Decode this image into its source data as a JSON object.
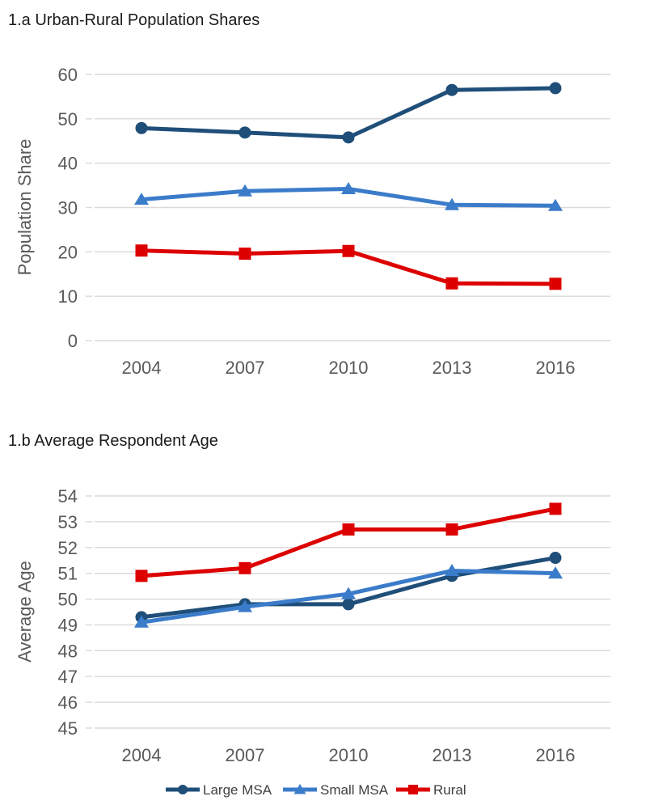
{
  "page": {
    "background": "#ffffff"
  },
  "colors": {
    "large_msa": "#1F4E79",
    "small_msa": "#3B7CCA",
    "rural": "#DD0000",
    "grid": "#D9D9D9",
    "tick_text": "#595959",
    "title_text": "#1A1A1A",
    "legend_text": "#404040"
  },
  "chart_data": [
    {
      "type": "line",
      "title": "1.a Urban-Rural Population Shares",
      "xlabel": "",
      "ylabel": "Population Share",
      "categories": [
        "2004",
        "2007",
        "2010",
        "2013",
        "2016"
      ],
      "ylim": [
        0,
        60
      ],
      "ytick_step": 10,
      "grid": true,
      "legend_position": "shared-bottom",
      "series": [
        {
          "name": "Large MSA",
          "marker": "circle",
          "color_key": "large_msa",
          "values": [
            47.9,
            46.9,
            45.8,
            56.5,
            56.9
          ]
        },
        {
          "name": "Small MSA",
          "marker": "triangle",
          "color_key": "small_msa",
          "values": [
            31.8,
            33.7,
            34.2,
            30.6,
            30.4
          ]
        },
        {
          "name": "Rural",
          "marker": "square",
          "color_key": "rural",
          "values": [
            20.3,
            19.6,
            20.2,
            12.9,
            12.8
          ]
        }
      ]
    },
    {
      "type": "line",
      "title": "1.b Average Respondent Age",
      "xlabel": "",
      "ylabel": "Average Age",
      "categories": [
        "2004",
        "2007",
        "2010",
        "2013",
        "2016"
      ],
      "ylim": [
        45,
        54
      ],
      "ytick_step": 1,
      "grid": true,
      "legend_position": "shared-bottom",
      "series": [
        {
          "name": "Large MSA",
          "marker": "circle",
          "color_key": "large_msa",
          "values": [
            49.3,
            49.8,
            49.8,
            50.9,
            51.6
          ]
        },
        {
          "name": "Small MSA",
          "marker": "triangle",
          "color_key": "small_msa",
          "values": [
            49.1,
            49.7,
            50.2,
            51.1,
            51.0
          ]
        },
        {
          "name": "Rural",
          "marker": "square",
          "color_key": "rural",
          "values": [
            50.9,
            51.2,
            52.7,
            52.7,
            53.5
          ]
        }
      ]
    }
  ],
  "legend": {
    "items": [
      {
        "label": "Large MSA",
        "marker": "circle",
        "color_key": "large_msa"
      },
      {
        "label": "Small MSA",
        "marker": "triangle",
        "color_key": "small_msa"
      },
      {
        "label": "Rural",
        "marker": "square",
        "color_key": "rural"
      }
    ]
  }
}
